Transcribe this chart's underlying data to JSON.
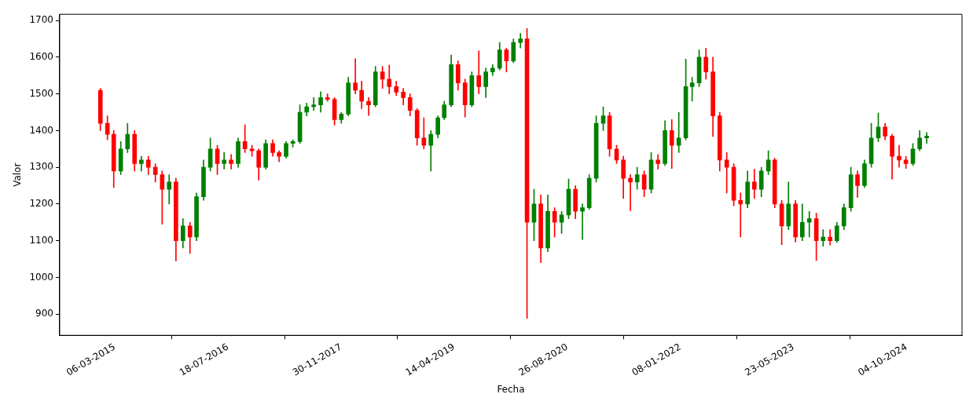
{
  "chart_data": {
    "type": "candlestick",
    "xlabel": "Fecha",
    "ylabel": "Valor",
    "xlim": [
      "2014-07-05",
      "2025-06-06"
    ],
    "xticks": [
      {
        "value": "2015-03-06",
        "label": "06-03-2015"
      },
      {
        "value": "2016-07-18",
        "label": "18-07-2016"
      },
      {
        "value": "2017-11-30",
        "label": "30-11-2017"
      },
      {
        "value": "2019-04-14",
        "label": "14-04-2019"
      },
      {
        "value": "2020-08-26",
        "label": "26-08-2020"
      },
      {
        "value": "2022-01-08",
        "label": "08-01-2022"
      },
      {
        "value": "2023-05-23",
        "label": "23-05-2023"
      },
      {
        "value": "2024-10-04",
        "label": "04-10-2024"
      }
    ],
    "ylim": [
      842,
      1717
    ],
    "yticks": [
      900,
      1000,
      1100,
      1200,
      1300,
      1400,
      1500,
      1600,
      1700
    ],
    "x": [
      "2015-01",
      "2015-02",
      "2015-03",
      "2015-04",
      "2015-05",
      "2015-06",
      "2015-07",
      "2015-08",
      "2015-09",
      "2015-10",
      "2015-11",
      "2015-12",
      "2016-01",
      "2016-02",
      "2016-03",
      "2016-04",
      "2016-05",
      "2016-06",
      "2016-07",
      "2016-08",
      "2016-09",
      "2016-10",
      "2016-11",
      "2016-12",
      "2017-01",
      "2017-02",
      "2017-03",
      "2017-04",
      "2017-05",
      "2017-06",
      "2017-07",
      "2017-08",
      "2017-09",
      "2017-10",
      "2017-11",
      "2017-12",
      "2018-01",
      "2018-02",
      "2018-03",
      "2018-04",
      "2018-05",
      "2018-06",
      "2018-07",
      "2018-08",
      "2018-09",
      "2018-10",
      "2018-11",
      "2018-12",
      "2019-01",
      "2019-02",
      "2019-03",
      "2019-04",
      "2019-05",
      "2019-06",
      "2019-07",
      "2019-08",
      "2019-09",
      "2019-10",
      "2019-11",
      "2019-12",
      "2020-01",
      "2020-02",
      "2020-03",
      "2020-04",
      "2020-05",
      "2020-06",
      "2020-07",
      "2020-08",
      "2020-09",
      "2020-10",
      "2020-11",
      "2020-12",
      "2021-01",
      "2021-02",
      "2021-03",
      "2021-04",
      "2021-05",
      "2021-06",
      "2021-07",
      "2021-08",
      "2021-09",
      "2021-10",
      "2021-11",
      "2021-12",
      "2022-01",
      "2022-02",
      "2022-03",
      "2022-04",
      "2022-05",
      "2022-06",
      "2022-07",
      "2022-08",
      "2022-09",
      "2022-10",
      "2022-11",
      "2022-12",
      "2023-01",
      "2023-02",
      "2023-03",
      "2023-04",
      "2023-05",
      "2023-06",
      "2023-07",
      "2023-08",
      "2023-09",
      "2023-10",
      "2023-11",
      "2023-12",
      "2024-01",
      "2024-02",
      "2024-03",
      "2024-04",
      "2024-05",
      "2024-06",
      "2024-07",
      "2024-08",
      "2024-09",
      "2024-10",
      "2024-11",
      "2024-12",
      "2025-01"
    ],
    "ohlc": [
      [
        1510,
        1515,
        1400,
        1420
      ],
      [
        1420,
        1440,
        1375,
        1390
      ],
      [
        1390,
        1400,
        1245,
        1290
      ],
      [
        1290,
        1370,
        1280,
        1350
      ],
      [
        1350,
        1420,
        1340,
        1390
      ],
      [
        1390,
        1400,
        1290,
        1310
      ],
      [
        1310,
        1330,
        1290,
        1320
      ],
      [
        1320,
        1330,
        1280,
        1300
      ],
      [
        1300,
        1310,
        1260,
        1280
      ],
      [
        1280,
        1290,
        1145,
        1240
      ],
      [
        1240,
        1280,
        1200,
        1260
      ],
      [
        1260,
        1270,
        1045,
        1100
      ],
      [
        1100,
        1160,
        1080,
        1140
      ],
      [
        1140,
        1150,
        1065,
        1110
      ],
      [
        1110,
        1230,
        1100,
        1220
      ],
      [
        1220,
        1320,
        1210,
        1300
      ],
      [
        1300,
        1380,
        1290,
        1350
      ],
      [
        1350,
        1360,
        1280,
        1310
      ],
      [
        1310,
        1340,
        1295,
        1320
      ],
      [
        1320,
        1335,
        1295,
        1310
      ],
      [
        1310,
        1380,
        1300,
        1370
      ],
      [
        1370,
        1416,
        1340,
        1350
      ],
      [
        1350,
        1360,
        1330,
        1345
      ],
      [
        1345,
        1350,
        1265,
        1300
      ],
      [
        1300,
        1375,
        1295,
        1365
      ],
      [
        1365,
        1375,
        1330,
        1340
      ],
      [
        1340,
        1345,
        1315,
        1330
      ],
      [
        1330,
        1370,
        1325,
        1365
      ],
      [
        1365,
        1375,
        1355,
        1370
      ],
      [
        1370,
        1470,
        1365,
        1450
      ],
      [
        1450,
        1475,
        1440,
        1465
      ],
      [
        1465,
        1490,
        1455,
        1470
      ],
      [
        1470,
        1506,
        1450,
        1490
      ],
      [
        1490,
        1500,
        1480,
        1485
      ],
      [
        1485,
        1490,
        1415,
        1430
      ],
      [
        1430,
        1450,
        1420,
        1445
      ],
      [
        1445,
        1545,
        1440,
        1530
      ],
      [
        1530,
        1596,
        1500,
        1510
      ],
      [
        1510,
        1535,
        1460,
        1480
      ],
      [
        1480,
        1490,
        1441,
        1470
      ],
      [
        1470,
        1575,
        1465,
        1560
      ],
      [
        1560,
        1575,
        1515,
        1540
      ],
      [
        1540,
        1578,
        1500,
        1520
      ],
      [
        1520,
        1535,
        1495,
        1505
      ],
      [
        1505,
        1515,
        1470,
        1490
      ],
      [
        1490,
        1500,
        1440,
        1455
      ],
      [
        1455,
        1460,
        1360,
        1380
      ],
      [
        1380,
        1435,
        1350,
        1360
      ],
      [
        1360,
        1400,
        1290,
        1390
      ],
      [
        1390,
        1440,
        1380,
        1435
      ],
      [
        1435,
        1480,
        1430,
        1470
      ],
      [
        1470,
        1606,
        1465,
        1580
      ],
      [
        1580,
        1590,
        1510,
        1530
      ],
      [
        1530,
        1540,
        1437,
        1470
      ],
      [
        1470,
        1560,
        1465,
        1550
      ],
      [
        1550,
        1617,
        1500,
        1520
      ],
      [
        1520,
        1570,
        1490,
        1560
      ],
      [
        1560,
        1580,
        1550,
        1570
      ],
      [
        1570,
        1640,
        1565,
        1620
      ],
      [
        1620,
        1625,
        1560,
        1590
      ],
      [
        1590,
        1650,
        1585,
        1640
      ],
      [
        1640,
        1665,
        1625,
        1650
      ],
      [
        1650,
        1678,
        888,
        1150
      ],
      [
        1150,
        1240,
        1100,
        1200
      ],
      [
        1200,
        1225,
        1040,
        1080
      ],
      [
        1080,
        1225,
        1070,
        1180
      ],
      [
        1180,
        1190,
        1110,
        1150
      ],
      [
        1150,
        1180,
        1120,
        1170
      ],
      [
        1170,
        1268,
        1160,
        1240
      ],
      [
        1240,
        1250,
        1160,
        1180
      ],
      [
        1180,
        1200,
        1103,
        1190
      ],
      [
        1190,
        1280,
        1185,
        1270
      ],
      [
        1270,
        1440,
        1260,
        1420
      ],
      [
        1420,
        1465,
        1400,
        1440
      ],
      [
        1440,
        1450,
        1330,
        1350
      ],
      [
        1350,
        1360,
        1310,
        1320
      ],
      [
        1320,
        1330,
        1215,
        1270
      ],
      [
        1270,
        1280,
        1182,
        1260
      ],
      [
        1260,
        1300,
        1240,
        1280
      ],
      [
        1280,
        1290,
        1220,
        1240
      ],
      [
        1240,
        1340,
        1230,
        1320
      ],
      [
        1320,
        1335,
        1295,
        1310
      ],
      [
        1310,
        1427,
        1305,
        1400
      ],
      [
        1400,
        1430,
        1297,
        1360
      ],
      [
        1360,
        1450,
        1340,
        1380
      ],
      [
        1380,
        1595,
        1375,
        1520
      ],
      [
        1520,
        1545,
        1480,
        1530
      ],
      [
        1530,
        1620,
        1520,
        1600
      ],
      [
        1600,
        1625,
        1540,
        1560
      ],
      [
        1560,
        1600,
        1384,
        1440
      ],
      [
        1440,
        1450,
        1290,
        1320
      ],
      [
        1320,
        1340,
        1230,
        1300
      ],
      [
        1300,
        1310,
        1195,
        1210
      ],
      [
        1210,
        1230,
        1110,
        1200
      ],
      [
        1200,
        1290,
        1190,
        1260
      ],
      [
        1260,
        1295,
        1215,
        1240
      ],
      [
        1240,
        1300,
        1220,
        1290
      ],
      [
        1290,
        1345,
        1280,
        1320
      ],
      [
        1320,
        1325,
        1190,
        1200
      ],
      [
        1200,
        1210,
        1089,
        1140
      ],
      [
        1140,
        1260,
        1130,
        1200
      ],
      [
        1200,
        1210,
        1096,
        1110
      ],
      [
        1110,
        1200,
        1100,
        1150
      ],
      [
        1150,
        1180,
        1110,
        1160
      ],
      [
        1160,
        1175,
        1046,
        1100
      ],
      [
        1100,
        1130,
        1085,
        1110
      ],
      [
        1110,
        1130,
        1088,
        1100
      ],
      [
        1100,
        1150,
        1095,
        1140
      ],
      [
        1140,
        1200,
        1130,
        1190
      ],
      [
        1190,
        1300,
        1180,
        1280
      ],
      [
        1280,
        1290,
        1218,
        1250
      ],
      [
        1250,
        1320,
        1245,
        1310
      ],
      [
        1310,
        1420,
        1300,
        1380
      ],
      [
        1380,
        1448,
        1370,
        1410
      ],
      [
        1410,
        1420,
        1375,
        1385
      ],
      [
        1385,
        1390,
        1268,
        1330
      ],
      [
        1330,
        1360,
        1300,
        1320
      ],
      [
        1320,
        1330,
        1297,
        1310
      ],
      [
        1310,
        1365,
        1305,
        1350
      ],
      [
        1350,
        1400,
        1345,
        1380
      ],
      [
        1380,
        1395,
        1365,
        1385
      ]
    ],
    "colors": [
      "#ff0000",
      "#ff0000",
      "#ff0000",
      "#008000",
      "#008000",
      "#ff0000",
      "#008000",
      "#ff0000",
      "#ff0000",
      "#ff0000",
      "#008000",
      "#ff0000",
      "#008000",
      "#ff0000",
      "#008000",
      "#008000",
      "#008000",
      "#ff0000",
      "#008000",
      "#ff0000",
      "#008000",
      "#ff0000",
      "#ff0000",
      "#ff0000",
      "#008000",
      "#ff0000",
      "#ff0000",
      "#008000",
      "#008000",
      "#008000",
      "#008000",
      "#008000",
      "#008000",
      "#ff0000",
      "#ff0000",
      "#008000",
      "#008000",
      "#ff0000",
      "#ff0000",
      "#ff0000",
      "#008000",
      "#ff0000",
      "#ff0000",
      "#ff0000",
      "#ff0000",
      "#ff0000",
      "#ff0000",
      "#ff0000",
      "#008000",
      "#008000",
      "#008000",
      "#008000",
      "#ff0000",
      "#ff0000",
      "#008000",
      "#ff0000",
      "#008000",
      "#008000",
      "#008000",
      "#ff0000",
      "#008000",
      "#008000",
      "#ff0000",
      "#008000",
      "#ff0000",
      "#008000",
      "#ff0000",
      "#008000",
      "#008000",
      "#ff0000",
      "#008000",
      "#008000",
      "#008000",
      "#008000",
      "#ff0000",
      "#ff0000",
      "#ff0000",
      "#ff0000",
      "#008000",
      "#ff0000",
      "#008000",
      "#ff0000",
      "#008000",
      "#ff0000",
      "#008000",
      "#008000",
      "#008000",
      "#008000",
      "#ff0000",
      "#ff0000",
      "#ff0000",
      "#ff0000",
      "#ff0000",
      "#ff0000",
      "#008000",
      "#ff0000",
      "#008000",
      "#008000",
      "#ff0000",
      "#ff0000",
      "#008000",
      "#ff0000",
      "#008000",
      "#008000",
      "#ff0000",
      "#008000",
      "#ff0000",
      "#008000",
      "#008000",
      "#008000",
      "#ff0000",
      "#008000",
      "#008000",
      "#008000",
      "#ff0000",
      "#ff0000",
      "#ff0000",
      "#ff0000",
      "#008000",
      "#008000",
      "#008000"
    ]
  }
}
